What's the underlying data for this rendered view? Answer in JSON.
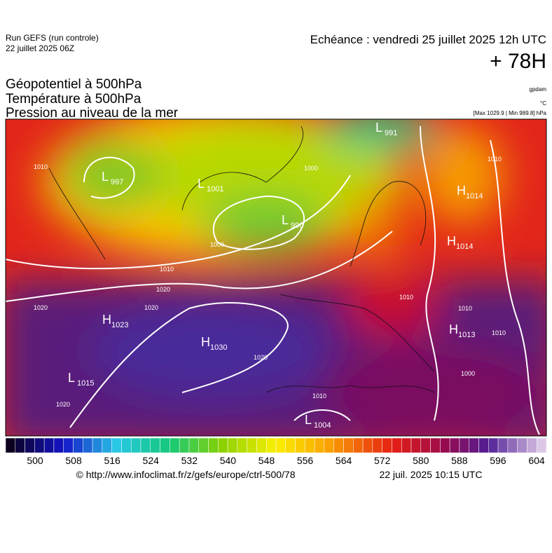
{
  "header": {
    "run": "Run GEFS (run controle)",
    "date": "22 juillet 2025 06Z",
    "echeance": "Echéance : vendredi 25 juillet 2025 12h UTC",
    "lead": "+ 78H"
  },
  "fields": [
    "Géopotentiel à 500hPa",
    "Température à 500hPa",
    "Pression au niveau de la mer"
  ],
  "units": [
    "gpdam",
    "°C",
    "[Max 1029.9 | Min 989.8] hPa"
  ],
  "pressure_centers": [
    {
      "kind": "L",
      "value": "997"
    },
    {
      "kind": "L",
      "value": "1001"
    },
    {
      "kind": "L",
      "value": "990"
    },
    {
      "kind": "L",
      "value": "991"
    },
    {
      "kind": "H",
      "value": "1014"
    },
    {
      "kind": "H",
      "value": "1014"
    },
    {
      "kind": "H",
      "value": "1023"
    },
    {
      "kind": "H",
      "value": "1030"
    },
    {
      "kind": "L",
      "value": "1015"
    },
    {
      "kind": "H",
      "value": "1013"
    },
    {
      "kind": "L",
      "value": "1004"
    }
  ],
  "isobar_labels": [
    "1010",
    "1000",
    "1000",
    "1010",
    "1020",
    "1020",
    "1020",
    "1020",
    "1010",
    "1010",
    "1010",
    "1010",
    "1000",
    "1020",
    "1010"
  ],
  "colorbar_ticks": [
    500,
    508,
    516,
    524,
    532,
    540,
    548,
    556,
    564,
    572,
    580,
    588,
    596,
    604
  ],
  "footer": {
    "url": "© http://www.infoclimat.fr/z/gefs/europe/ctrl-500/78",
    "time": "22 juil. 2025 10:15 UTC"
  }
}
